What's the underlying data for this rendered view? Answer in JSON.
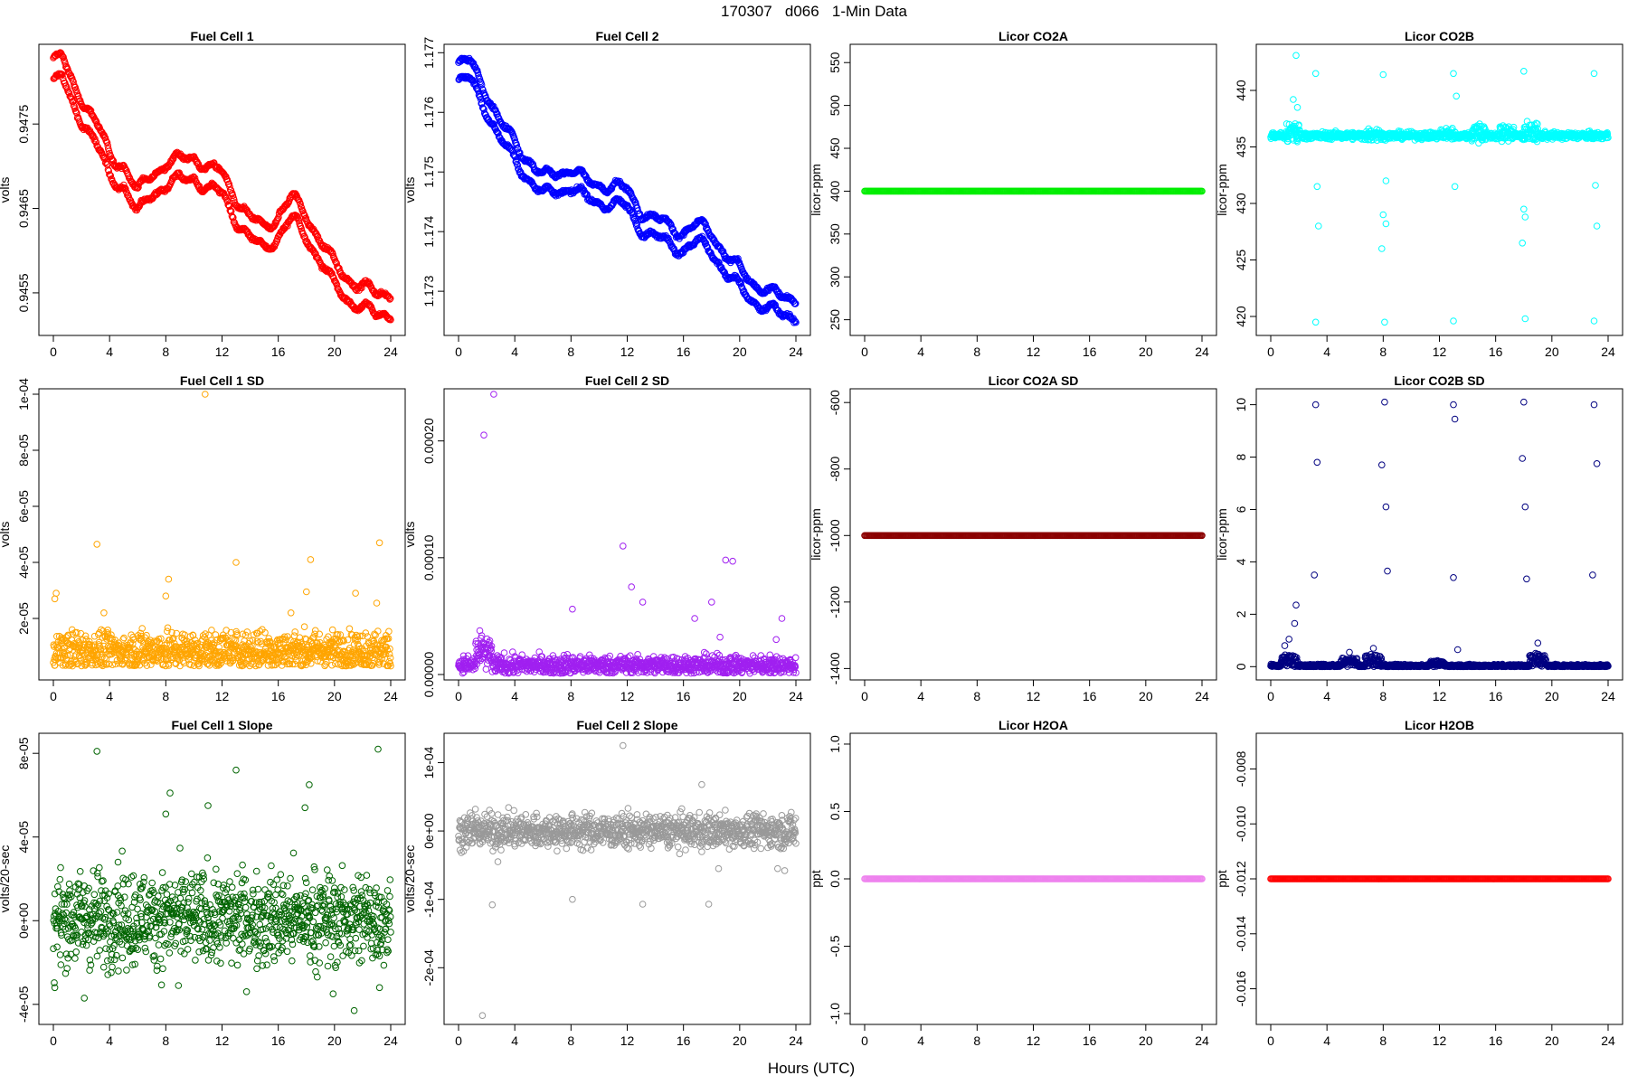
{
  "figure": {
    "title": "170307   d066   1-Min Data",
    "xlabel": "Hours (UTC)"
  },
  "chart_data": [
    {
      "type": "scatter",
      "title": "Fuel Cell 1",
      "ylabel": "volts",
      "color": "#ff0000",
      "xlim": [
        0,
        24
      ],
      "xticks": [
        0,
        4,
        8,
        12,
        16,
        20,
        24
      ],
      "ylim": [
        0.94506,
        0.94838
      ],
      "yticks": [
        0.9455,
        0.9465,
        0.9475
      ],
      "ytick_labels": [
        "0.9455",
        "0.9465",
        "0.9475"
      ],
      "pattern": "dual",
      "gap": 0.00025,
      "noise": 2e-05,
      "trend": [
        [
          0,
          0.94812
        ],
        [
          0.6,
          0.94818
        ],
        [
          1.2,
          0.9479
        ],
        [
          2,
          0.9477
        ],
        [
          3,
          0.9474
        ],
        [
          4,
          0.947
        ],
        [
          5,
          0.9469
        ],
        [
          6,
          0.94655
        ],
        [
          7,
          0.9468
        ],
        [
          8,
          0.9469
        ],
        [
          9,
          0.94695
        ],
        [
          10,
          0.947
        ],
        [
          11,
          0.94685
        ],
        [
          12,
          0.9468
        ],
        [
          13,
          0.9465
        ],
        [
          14,
          0.94625
        ],
        [
          15,
          0.94615
        ],
        [
          16,
          0.9463
        ],
        [
          17,
          0.9465
        ],
        [
          18,
          0.9463
        ],
        [
          19,
          0.946
        ],
        [
          20,
          0.9457
        ],
        [
          21,
          0.94555
        ],
        [
          22,
          0.94545
        ],
        [
          23,
          0.94535
        ],
        [
          24,
          0.9454
        ]
      ]
    },
    {
      "type": "scatter",
      "title": "Fuel Cell 2",
      "ylabel": "volts",
      "color": "#0000ff",
      "xlim": [
        0,
        24
      ],
      "xticks": [
        0,
        4,
        8,
        12,
        16,
        20,
        24
      ],
      "ylim": [
        1.17235,
        1.17705
      ],
      "yticks": [
        1.173,
        1.174,
        1.175,
        1.176,
        1.177
      ],
      "ytick_labels": [
        "1.173",
        "1.174",
        "1.175",
        "1.176",
        "1.177"
      ],
      "pattern": "dual",
      "gap": 0.0003,
      "noise": 3e-05,
      "trend": [
        [
          0,
          1.17665
        ],
        [
          0.8,
          1.1767
        ],
        [
          2,
          1.1762
        ],
        [
          3,
          1.17565
        ],
        [
          4,
          1.17535
        ],
        [
          5,
          1.17505
        ],
        [
          6,
          1.17475
        ],
        [
          7,
          1.17485
        ],
        [
          8,
          1.1749
        ],
        [
          9,
          1.1747
        ],
        [
          10,
          1.17465
        ],
        [
          11,
          1.1746
        ],
        [
          12,
          1.17455
        ],
        [
          13,
          1.1742
        ],
        [
          14,
          1.17405
        ],
        [
          15,
          1.17395
        ],
        [
          16,
          1.17385
        ],
        [
          17,
          1.17395
        ],
        [
          18,
          1.17385
        ],
        [
          19,
          1.17345
        ],
        [
          20,
          1.1732
        ],
        [
          21,
          1.173
        ],
        [
          22,
          1.17285
        ],
        [
          23,
          1.17275
        ],
        [
          24,
          1.17275
        ]
      ]
    },
    {
      "type": "scatter",
      "title": "Licor CO2A",
      "ylabel": "licor-ppm",
      "color": "#00ee00",
      "xlim": [
        0,
        24
      ],
      "xticks": [
        0,
        4,
        8,
        12,
        16,
        20,
        24
      ],
      "ylim": [
        238,
        565
      ],
      "yticks": [
        250,
        300,
        350,
        400,
        450,
        500,
        550
      ],
      "ytick_labels": [
        "250",
        "300",
        "350",
        "400",
        "450",
        "500",
        "550"
      ],
      "pattern": "constant",
      "value": 400
    },
    {
      "type": "scatter",
      "title": "Licor CO2B",
      "ylabel": "licor-ppm",
      "color": "#00ffff",
      "xlim": [
        0,
        24
      ],
      "xticks": [
        0,
        4,
        8,
        12,
        16,
        20,
        24
      ],
      "ylim": [
        418.8,
        443.6
      ],
      "yticks": [
        420,
        425,
        430,
        435,
        440
      ],
      "ytick_labels": [
        "420",
        "425",
        "430",
        "435",
        "440"
      ],
      "pattern": "baseline",
      "base": 436.0,
      "noise": 0.15,
      "bursts": [
        {
          "x": 1.6,
          "amp": 1.6
        },
        {
          "x": 7.2,
          "amp": 0.8
        },
        {
          "x": 12.5,
          "amp": 0.7
        },
        {
          "x": 14.8,
          "amp": 1.3
        },
        {
          "x": 16.8,
          "amp": 1.2
        },
        {
          "x": 18.5,
          "amp": 1.5
        }
      ],
      "outliers": [
        [
          3.2,
          441.5
        ],
        [
          3.2,
          419.5
        ],
        [
          3.3,
          431.5
        ],
        [
          3.4,
          428.0
        ],
        [
          8.0,
          441.4
        ],
        [
          8.1,
          419.5
        ],
        [
          8.2,
          432.0
        ],
        [
          8.0,
          429.0
        ],
        [
          8.2,
          428.2
        ],
        [
          7.9,
          426.0
        ],
        [
          13.0,
          441.5
        ],
        [
          13.0,
          419.6
        ],
        [
          13.2,
          439.5
        ],
        [
          13.1,
          431.5
        ],
        [
          18.0,
          441.7
        ],
        [
          18.1,
          419.8
        ],
        [
          18.1,
          428.8
        ],
        [
          17.9,
          426.5
        ],
        [
          18.0,
          429.5
        ],
        [
          23.0,
          441.5
        ],
        [
          23.0,
          419.6
        ],
        [
          23.1,
          431.6
        ],
        [
          23.2,
          428.0
        ],
        [
          1.8,
          443.1
        ],
        [
          1.6,
          439.2
        ],
        [
          1.9,
          438.5
        ]
      ]
    },
    {
      "type": "scatter",
      "title": "Fuel Cell 1 SD",
      "ylabel": "volts",
      "color": "#ffa500",
      "xlim": [
        0,
        24
      ],
      "xticks": [
        0,
        4,
        8,
        12,
        16,
        20,
        24
      ],
      "ylim": [
        0,
        0.0001
      ],
      "yticks": [
        2e-05,
        4e-05,
        6e-05,
        8e-05,
        0.0001
      ],
      "ytick_labels": [
        "2e-05",
        "4e-05",
        "6e-05",
        "8e-05",
        "1e-04"
      ],
      "pattern": "noise",
      "mean": 8.5e-06,
      "spread": 3.5e-06,
      "floor": 3e-06,
      "outliers": [
        [
          0.1,
          2.7e-05
        ],
        [
          0.2,
          2.9e-05
        ],
        [
          3.1,
          4.65e-05
        ],
        [
          3.6,
          2.2e-05
        ],
        [
          8.0,
          2.8e-05
        ],
        [
          8.2,
          3.4e-05
        ],
        [
          10.8,
          0.0001
        ],
        [
          13.0,
          4e-05
        ],
        [
          16.9,
          2.2e-05
        ],
        [
          18.0,
          2.95e-05
        ],
        [
          18.3,
          4.1e-05
        ],
        [
          21.5,
          2.9e-05
        ],
        [
          23.0,
          2.55e-05
        ],
        [
          23.2,
          4.7e-05
        ]
      ]
    },
    {
      "type": "scatter",
      "title": "Fuel Cell 2 SD",
      "ylabel": "volts",
      "color": "#a020f0",
      "xlim": [
        0,
        24
      ],
      "xticks": [
        0,
        4,
        8,
        12,
        16,
        20,
        24
      ],
      "ylim": [
        0,
        0.00024
      ],
      "yticks": [
        0,
        0.0001,
        0.0002
      ],
      "ytick_labels": [
        "0.00000",
        "0.00010",
        "0.00020"
      ],
      "pattern": "noise",
      "mean": 8e-06,
      "spread": 4e-06,
      "floor": 1e-06,
      "bursts": [
        {
          "x": 1.8,
          "amp": 2e-05
        }
      ],
      "outliers": [
        [
          1.8,
          0.000205
        ],
        [
          2.5,
          0.00024
        ],
        [
          8.1,
          5.6e-05
        ],
        [
          11.7,
          0.00011
        ],
        [
          12.3,
          7.5e-05
        ],
        [
          13.1,
          6.2e-05
        ],
        [
          16.8,
          4.8e-05
        ],
        [
          18.0,
          6.2e-05
        ],
        [
          18.6,
          3.2e-05
        ],
        [
          19.0,
          9.8e-05
        ],
        [
          19.5,
          9.7e-05
        ],
        [
          23.0,
          4.8e-05
        ],
        [
          22.6,
          3e-05
        ]
      ]
    },
    {
      "type": "scatter",
      "title": "Licor CO2A SD",
      "ylabel": "licor-ppm",
      "color": "#8b0000",
      "xlim": [
        0,
        24
      ],
      "xticks": [
        0,
        4,
        8,
        12,
        16,
        20,
        24
      ],
      "ylim": [
        -1418,
        -575
      ],
      "yticks": [
        -1400,
        -1200,
        -1000,
        -800,
        -600
      ],
      "ytick_labels": [
        "-1400",
        "-1200",
        "-1000",
        "-800",
        "-600"
      ],
      "pattern": "constant",
      "value": -1000
    },
    {
      "type": "scatter",
      "title": "Licor CO2B SD",
      "ylabel": "licor-ppm",
      "color": "#000080",
      "xlim": [
        0,
        24
      ],
      "xticks": [
        0,
        4,
        8,
        12,
        16,
        20,
        24
      ],
      "ylim": [
        -0.3,
        10.4
      ],
      "yticks": [
        0,
        2,
        4,
        6,
        8,
        10
      ],
      "ytick_labels": [
        "0",
        "2",
        "4",
        "6",
        "8",
        "10"
      ],
      "pattern": "noise",
      "mean": 0.03,
      "spread": 0.03,
      "floor": 0,
      "bursts": [
        {
          "x": 1.3,
          "amp": 0.4
        },
        {
          "x": 5.6,
          "amp": 0.3
        },
        {
          "x": 7.3,
          "amp": 0.4
        },
        {
          "x": 11.8,
          "amp": 0.15
        },
        {
          "x": 19.0,
          "amp": 0.45
        }
      ],
      "outliers": [
        [
          3.2,
          10.0
        ],
        [
          3.3,
          7.8
        ],
        [
          3.1,
          3.5
        ],
        [
          8.1,
          10.1
        ],
        [
          7.9,
          7.7
        ],
        [
          8.2,
          6.1
        ],
        [
          8.3,
          3.65
        ],
        [
          13.0,
          10.0
        ],
        [
          13.1,
          9.45
        ],
        [
          13.0,
          3.4
        ],
        [
          18.0,
          10.1
        ],
        [
          17.9,
          7.95
        ],
        [
          18.1,
          6.1
        ],
        [
          18.2,
          3.35
        ],
        [
          23.0,
          10.0
        ],
        [
          23.2,
          7.75
        ],
        [
          22.9,
          3.5
        ],
        [
          1.3,
          1.05
        ],
        [
          1.8,
          2.35
        ],
        [
          1.7,
          1.65
        ],
        [
          19.0,
          0.9
        ],
        [
          13.3,
          0.65
        ],
        [
          5.6,
          0.55
        ],
        [
          7.3,
          0.7
        ],
        [
          1.0,
          0.8
        ]
      ]
    },
    {
      "type": "scatter",
      "title": "Fuel Cell 1 Slope",
      "ylabel": "volts/20-sec",
      "color": "#006400",
      "xlim": [
        0,
        24
      ],
      "xticks": [
        0,
        4,
        8,
        12,
        16,
        20,
        24
      ],
      "ylim": [
        -4.7e-05,
        8.7e-05
      ],
      "yticks": [
        -4e-05,
        0,
        4e-05,
        8e-05
      ],
      "ytick_labels": [
        "-4e-05",
        "0e+00",
        "4e-05",
        "8e-05"
      ],
      "pattern": "noise",
      "mean": 1e-06,
      "spread": 1.1e-05,
      "floor": -1,
      "outliers": [
        [
          3.1,
          8.1e-05
        ],
        [
          8.3,
          6.1e-05
        ],
        [
          8.0,
          5.1e-05
        ],
        [
          11.0,
          5.5e-05
        ],
        [
          13.0,
          7.2e-05
        ],
        [
          18.2,
          6.5e-05
        ],
        [
          17.9,
          5.4e-05
        ],
        [
          23.1,
          8.2e-05
        ],
        [
          4.6,
          2.8e-05
        ],
        [
          0.1,
          -3.2e-05
        ],
        [
          2.2,
          -3.7e-05
        ],
        [
          19.9,
          -3.5e-05
        ],
        [
          21.4,
          -4.3e-05
        ],
        [
          23.2,
          -3.2e-05
        ],
        [
          8.9,
          -3.1e-05
        ]
      ]
    },
    {
      "type": "scatter",
      "title": "Fuel Cell 2 Slope",
      "ylabel": "volts/20-sec",
      "color": "#999999",
      "xlim": [
        0,
        24
      ],
      "xticks": [
        0,
        4,
        8,
        12,
        16,
        20,
        24
      ],
      "ylim": [
        -0.000275,
        0.000135
      ],
      "yticks": [
        -0.0002,
        -0.0001,
        0,
        0.0001
      ],
      "ytick_labels": [
        "-2e-04",
        "-1e-04",
        "0e+00",
        "1e-04"
      ],
      "pattern": "noise",
      "mean": 0,
      "spread": 1.2e-05,
      "floor": -1,
      "outliers": [
        [
          1.7,
          -0.00027
        ],
        [
          2.4,
          -0.000108
        ],
        [
          8.1,
          -0.0001
        ],
        [
          11.7,
          0.000125
        ],
        [
          13.1,
          -0.000107
        ],
        [
          17.3,
          6.8e-05
        ],
        [
          17.8,
          -0.000107
        ],
        [
          18.5,
          -5.5e-05
        ],
        [
          1.2,
          3.2e-05
        ],
        [
          2.8,
          -4.5e-05
        ],
        [
          22.7,
          -5.5e-05
        ],
        [
          23.2,
          -5.8e-05
        ],
        [
          0.1,
          -2.8e-05
        ]
      ]
    },
    {
      "type": "scatter",
      "title": "Licor H2OA",
      "ylabel": "ppt",
      "color": "#ee82ee",
      "xlim": [
        0,
        24
      ],
      "xticks": [
        0,
        4,
        8,
        12,
        16,
        20,
        24
      ],
      "ylim": [
        -1.04,
        1.04
      ],
      "yticks": [
        -1.0,
        -0.5,
        0.0,
        0.5,
        1.0
      ],
      "ytick_labels": [
        "-1.0",
        "-0.5",
        "0.0",
        "0.5",
        "1.0"
      ],
      "pattern": "constant",
      "value": 0
    },
    {
      "type": "scatter",
      "title": "Licor H2OB",
      "ylabel": "ppt",
      "color": "#ff0000",
      "xlim": [
        0,
        24
      ],
      "xticks": [
        0,
        4,
        8,
        12,
        16,
        20,
        24
      ],
      "ylim": [
        -0.0171,
        -0.0069
      ],
      "yticks": [
        -0.016,
        -0.014,
        -0.012,
        -0.01,
        -0.008
      ],
      "ytick_labels": [
        "-0.016",
        "-0.014",
        "-0.012",
        "-0.010",
        "-0.008"
      ],
      "pattern": "constant",
      "value": -0.012
    }
  ]
}
